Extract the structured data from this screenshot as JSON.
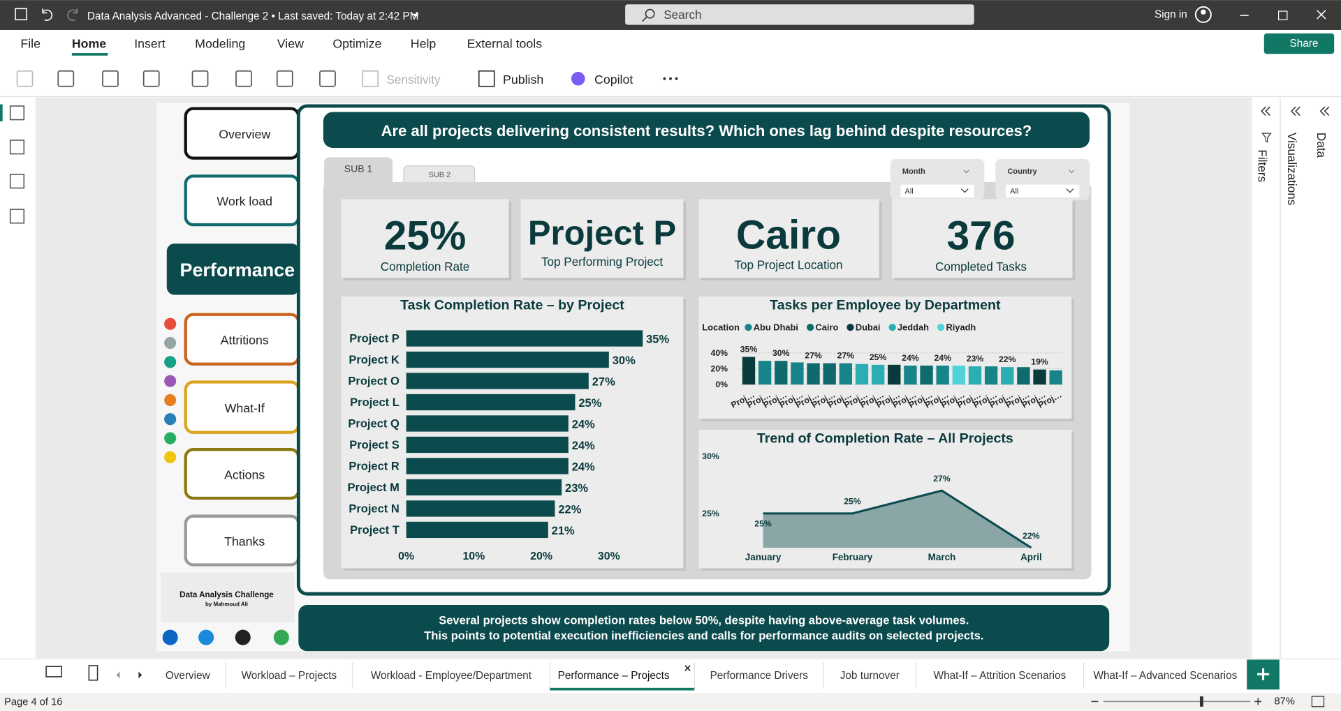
{
  "window": {
    "title": "Data Analysis Advanced - Challenge 2 • Last saved: Today at 2:42 PM",
    "search": "Search",
    "sign_in": "Sign in"
  },
  "ribbon": {
    "tabs": [
      "File",
      "Home",
      "Insert",
      "Modeling",
      "View",
      "Optimize",
      "Help",
      "External tools"
    ],
    "share": "Share",
    "buttons": [
      "Sensitivity",
      "Publish",
      "Copilot"
    ]
  },
  "nav": [
    {
      "label": "Overview",
      "color": "#111111"
    },
    {
      "label": "Work load",
      "color": "#0e6b6e"
    },
    {
      "label": "Performance",
      "color": "#0b4a4d"
    },
    {
      "label": "Attritions",
      "color": "#c8641e"
    },
    {
      "label": "What-If",
      "color": "#d9a520"
    },
    {
      "label": "Actions",
      "color": "#8b7a12"
    },
    {
      "label": "Thanks",
      "color": "#9a9a9a"
    }
  ],
  "logo": {
    "title": "Data Analysis Challenge",
    "byline": "by Mahmoud Ali"
  },
  "dashboard": {
    "question": "Are all projects delivering consistent results? Which ones lag behind despite resources?",
    "tabs": [
      "SUB 1",
      "SUB 2"
    ],
    "slicers": [
      {
        "label": "Month",
        "value": "All"
      },
      {
        "label": "Country",
        "value": "All"
      }
    ],
    "kpis": [
      {
        "value": "25%",
        "label": "Completion Rate"
      },
      {
        "value": "Project P",
        "label": "Top Performing Project"
      },
      {
        "value": "Cairo",
        "label": "Top Project Location"
      },
      {
        "value": "376",
        "label": "Completed Tasks"
      }
    ],
    "footer": [
      "Several projects show completion rates below 50%, despite having above-average task volumes.",
      "This points to potential execution inefficiencies and calls for performance audits on selected projects."
    ]
  },
  "chart_data": [
    {
      "type": "bar",
      "orientation": "horizontal",
      "title": "Task Completion Rate – by Project",
      "categories": [
        "Project P",
        "Project K",
        "Project O",
        "Project L",
        "Project Q",
        "Project S",
        "Project R",
        "Project M",
        "Project N",
        "Project T"
      ],
      "values": [
        35,
        30,
        27,
        25,
        24,
        24,
        24,
        23,
        22,
        21
      ],
      "value_labels": [
        "35%",
        "30%",
        "27%",
        "25%",
        "24%",
        "24%",
        "24%",
        "23%",
        "22%",
        "21%"
      ],
      "color": "#0b4a4d",
      "xlim": [
        0,
        40
      ],
      "xticks": [
        {
          "value": 0,
          "label": "0%"
        },
        {
          "value": 10,
          "label": "10%"
        },
        {
          "value": 20,
          "label": "20%"
        },
        {
          "value": 30,
          "label": "30%"
        }
      ],
      "grid": false
    },
    {
      "type": "bar",
      "orientation": "vertical",
      "title": "Tasks per Employee by Department",
      "legend_title": "Location",
      "legend": [
        {
          "name": "Abu Dhabi",
          "color": "#178489"
        },
        {
          "name": "Cairo",
          "color": "#0f6a6e"
        },
        {
          "name": "Dubai",
          "color": "#093b3d"
        },
        {
          "name": "Jeddah",
          "color": "#2aaeb3"
        },
        {
          "name": "Riyadh",
          "color": "#52d3d9"
        }
      ],
      "categories": [
        "Proj…",
        "Proj…",
        "Proj…",
        "Proj…",
        "Proj…",
        "Proj…",
        "Proj…",
        "Proj…",
        "Proj…",
        "Proj…",
        "Proj…",
        "Proj…",
        "Proj…",
        "Proj…",
        "Proj…",
        "Proj…",
        "Proj…",
        "Proj…",
        "Proj…",
        "Proj…"
      ],
      "values": [
        35,
        30,
        30,
        28,
        27,
        27,
        27,
        26,
        25,
        25,
        24,
        24,
        24,
        24,
        23,
        23,
        22,
        22,
        19,
        18
      ],
      "value_labels": [
        "35%",
        null,
        "30%",
        null,
        "27%",
        null,
        "27%",
        null,
        "25%",
        null,
        "24%",
        null,
        "24%",
        null,
        "23%",
        null,
        "22%",
        null,
        "19%",
        null
      ],
      "colors": [
        "#093b3d",
        "#178489",
        "#0f6a6e",
        "#178489",
        "#0f6a6e",
        "#0f6a6e",
        "#178489",
        "#2aaeb3",
        "#2aaeb3",
        "#093b3d",
        "#178489",
        "#0f6a6e",
        "#178489",
        "#52d3d9",
        "#2aaeb3",
        "#178489",
        "#2aaeb3",
        "#0f6a6e",
        "#093b3d",
        "#178489"
      ],
      "ylim": [
        0,
        40
      ],
      "yticks": [
        {
          "value": 0,
          "label": "0%"
        },
        {
          "value": 20,
          "label": "20%"
        },
        {
          "value": 40,
          "label": "40%"
        }
      ],
      "grid": true
    },
    {
      "type": "area",
      "title": "Trend of Completion Rate – All Projects",
      "categories": [
        "January",
        "February",
        "March",
        "April"
      ],
      "values": [
        25,
        25,
        27,
        22
      ],
      "value_labels": [
        "25%",
        "25%",
        "27%",
        "22%"
      ],
      "color": "#8aa6a6",
      "line_color": "#0b4a4d",
      "ylim": [
        22,
        30
      ],
      "yticks": [
        {
          "value": 25,
          "label": "25%"
        },
        {
          "value": 30,
          "label": "30%"
        }
      ],
      "grid": false
    }
  ],
  "page_tabs": [
    "Overview",
    "Workload – Projects",
    "Workload - Employee/Department",
    "Performance – Projects",
    "Performance Drivers",
    "Job turnover",
    "What-If – Attrition Scenarios",
    "What-If – Advanced Scenarios"
  ],
  "active_page_tab": 3,
  "status": {
    "page": "Page 4 of 16",
    "zoom": "87%"
  },
  "panes": [
    "Filters",
    "Visualizations",
    "Data"
  ]
}
